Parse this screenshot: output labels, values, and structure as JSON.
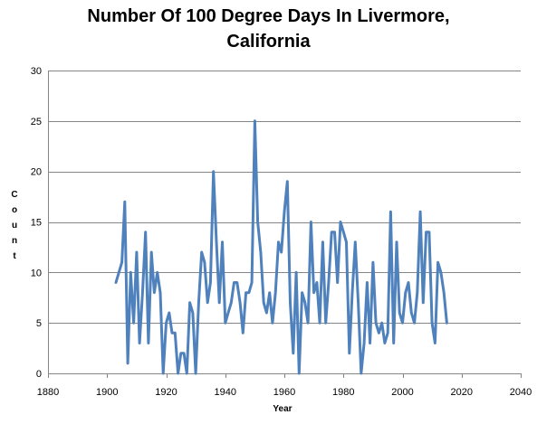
{
  "chart_data": {
    "type": "line",
    "title": "Number Of 100 Degree Days In Livermore, California",
    "title_lines": [
      "Number Of 100 Degree Days In Livermore,",
      "California"
    ],
    "xlabel": "Year",
    "ylabel": "Count",
    "xlim": [
      1880,
      2040
    ],
    "ylim": [
      0,
      30
    ],
    "xticks": [
      1880,
      1900,
      1920,
      1940,
      1960,
      1980,
      2000,
      2020,
      2040
    ],
    "yticks": [
      0,
      5,
      10,
      15,
      20,
      25,
      30
    ],
    "grid": "horizontal",
    "legend": "none",
    "series_color": "#4F81BD",
    "series": [
      {
        "x": [
          1903,
          1905,
          1906,
          1907,
          1908,
          1909,
          1910,
          1911,
          1912,
          1913,
          1914,
          1915,
          1916,
          1917,
          1918,
          1919,
          1920,
          1921,
          1922,
          1923,
          1924,
          1925,
          1926,
          1927,
          1928,
          1929,
          1930,
          1931,
          1932,
          1933,
          1934,
          1935,
          1936,
          1937,
          1938,
          1939,
          1940,
          1941,
          1942,
          1943,
          1944,
          1945,
          1946,
          1947,
          1948,
          1949,
          1950,
          1951,
          1952,
          1953,
          1954,
          1955,
          1956,
          1957,
          1958,
          1959,
          1960,
          1961,
          1962,
          1963,
          1964,
          1965,
          1966,
          1967,
          1968,
          1969,
          1970,
          1971,
          1972,
          1973,
          1974,
          1975,
          1976,
          1977,
          1978,
          1979,
          1980,
          1981,
          1982,
          1983,
          1984,
          1985,
          1986,
          1987,
          1988,
          1989,
          1990,
          1991,
          1992,
          1993,
          1994,
          1995,
          1996,
          1997,
          1998,
          1999,
          2000,
          2001,
          2002,
          2003,
          2004,
          2005,
          2006,
          2007,
          2008,
          2009,
          2010,
          2011,
          2012,
          2013,
          2014,
          2015
        ],
        "y": [
          9,
          11,
          17,
          1,
          10,
          5,
          12,
          3,
          8,
          14,
          3,
          12,
          8,
          10,
          8,
          0,
          5,
          6,
          4,
          4,
          0,
          2,
          2,
          0,
          7,
          6,
          0,
          7,
          12,
          11,
          7,
          9,
          20,
          13,
          7,
          13,
          5,
          6,
          7,
          9,
          9,
          7,
          4,
          8,
          8,
          9,
          25,
          15,
          12,
          7,
          6,
          8,
          5,
          8,
          13,
          12,
          16,
          19,
          7,
          2,
          10,
          0,
          8,
          7,
          5,
          15,
          8,
          9,
          5,
          13,
          5,
          9,
          14,
          14,
          9,
          15,
          14,
          13,
          2,
          8,
          13,
          7,
          0,
          3,
          9,
          3,
          11,
          5,
          4,
          5,
          3,
          4,
          16,
          3,
          13,
          6,
          5,
          8,
          9,
          6,
          5,
          8,
          16,
          7,
          14,
          14,
          5,
          3,
          11,
          10,
          8,
          5
        ]
      }
    ]
  }
}
